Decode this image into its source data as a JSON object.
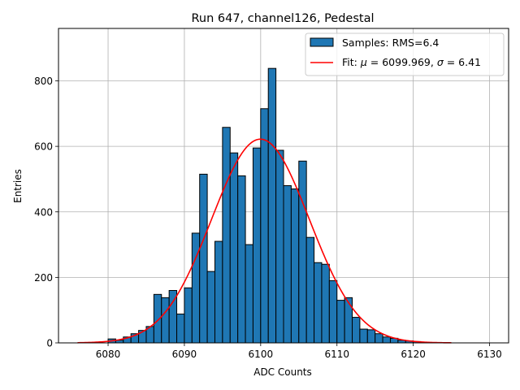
{
  "chart_data": {
    "type": "bar",
    "title": "Run 647, channel126, Pedestal",
    "xlabel": "ADC Counts",
    "ylabel": "Entries",
    "xlim": [
      6073.5,
      6132.5
    ],
    "ylim": [
      0,
      960
    ],
    "grid": true,
    "legend_position": "top-right",
    "xticks": [
      6080,
      6090,
      6100,
      6110,
      6120,
      6130
    ],
    "yticks": [
      0,
      200,
      400,
      600,
      800
    ],
    "series": [
      {
        "name": "Samples: RMS=6.4",
        "kind": "histogram",
        "color": "#1f77b4",
        "edge_color": "#000000",
        "bin_start": 6080,
        "bin_width": 1,
        "values": [
          12,
          8,
          18,
          28,
          38,
          50,
          148,
          138,
          160,
          88,
          168,
          335,
          515,
          218,
          310,
          658,
          580,
          510,
          300,
          595,
          715,
          838,
          588,
          480,
          470,
          555,
          322,
          245,
          240,
          190,
          130,
          138,
          78,
          42,
          40,
          28,
          18,
          14,
          8,
          6,
          4,
          2,
          1,
          1
        ]
      },
      {
        "name": "Fit: μ = 6099.969, σ = 6.41",
        "legend_prefix": "Fit: ",
        "legend_mu": "μ",
        "legend_mid": " = 6099.969, ",
        "legend_sigma": "σ",
        "legend_tail": " = 6.41",
        "kind": "gaussian",
        "color": "#ff0000",
        "mu": 6099.969,
        "sigma": 6.41,
        "amplitude": 622,
        "x_range": [
          6076,
          6125
        ]
      }
    ]
  }
}
